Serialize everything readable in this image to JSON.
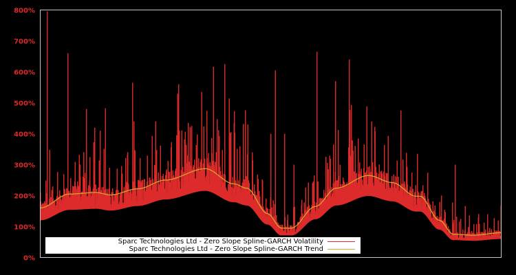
{
  "chart_data": {
    "type": "line",
    "title": "",
    "xlabel": "",
    "ylabel": "",
    "ylim": [
      0,
      800
    ],
    "y_ticks": [
      "0%",
      "100%",
      "200%",
      "300%",
      "400%",
      "500%",
      "600%",
      "700%",
      "800%"
    ],
    "grid": false,
    "legend_position": "lower-left inside",
    "colors": {
      "background": "#000000",
      "frame": "#c8c8c8",
      "tick_label": "#dd2a2a",
      "volatility": "#dd2a2a",
      "trend": "#d4a62a"
    },
    "series": [
      {
        "name": "Sparc Technologies Ltd - Zero Slope Spline-GARCH Volatility",
        "color": "#dd2a2a",
        "x_frac": [
          0.0,
          0.015,
          0.06,
          0.1,
          0.13,
          0.15,
          0.2,
          0.25,
          0.3,
          0.35,
          0.4,
          0.42,
          0.45,
          0.47,
          0.5,
          0.51,
          0.53,
          0.55,
          0.6,
          0.64,
          0.65,
          0.67,
          0.7,
          0.74,
          0.76,
          0.8,
          0.82,
          0.83,
          0.87,
          0.9,
          0.95,
          0.97,
          1.0
        ],
        "peaks": [
          210,
          795,
          660,
          480,
          410,
          290,
          565,
          440,
          560,
          535,
          625,
          435,
          430,
          160,
          400,
          605,
          400,
          300,
          665,
          570,
          300,
          640,
          215,
          110,
          100,
          150,
          90,
          85,
          200,
          300,
          130,
          140,
          130
        ]
      },
      {
        "name": "Sparc Technologies Ltd - Zero Slope Spline-GARCH Trend",
        "color": "#d4a62a",
        "x_frac": [
          0.0,
          0.063,
          0.122,
          0.152,
          0.212,
          0.271,
          0.358,
          0.42,
          0.448,
          0.493,
          0.523,
          0.545,
          0.597,
          0.642,
          0.712,
          0.764,
          0.815,
          0.824,
          0.866,
          0.896,
          0.94,
          1.0
        ],
        "values": [
          160,
          205,
          210,
          202,
          222,
          250,
          287,
          238,
          224,
          142,
          95,
          95,
          165,
          224,
          265,
          242,
          198,
          198,
          120,
          75,
          72,
          80
        ]
      }
    ]
  },
  "legend": {
    "items": [
      {
        "label": "Sparc Technologies Ltd - Zero Slope Spline-GARCH Volatility",
        "color": "#dd2a2a"
      },
      {
        "label": "Sparc Technologies Ltd - Zero Slope Spline-GARCH Trend",
        "color": "#d4a62a"
      }
    ]
  }
}
